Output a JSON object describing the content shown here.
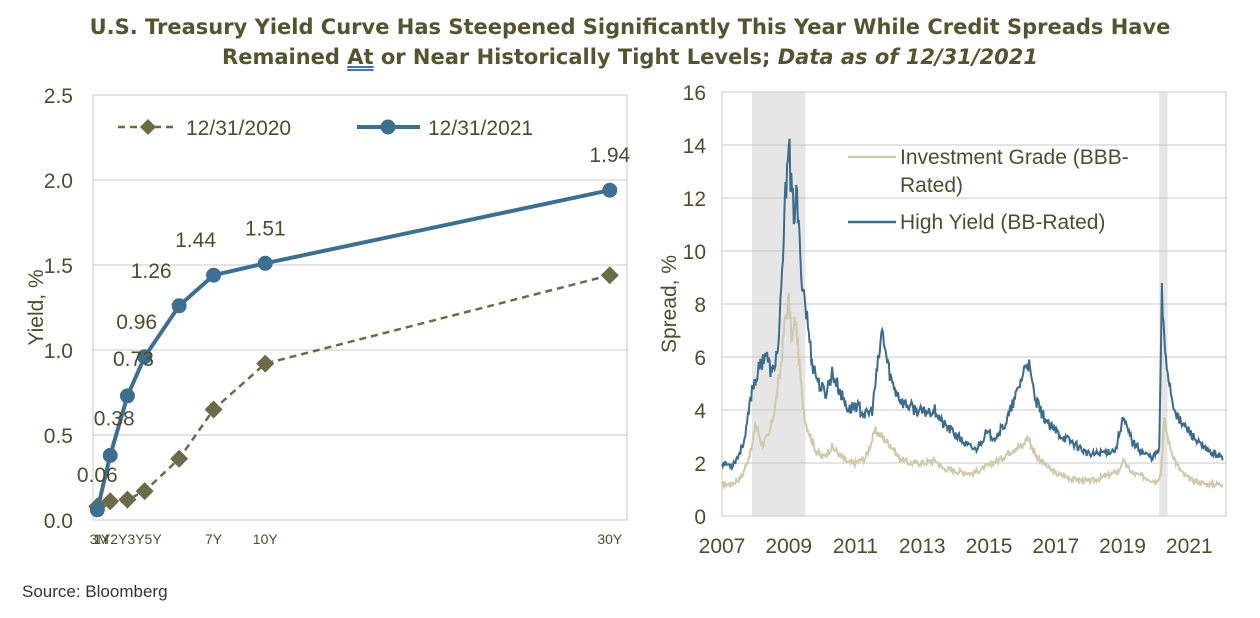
{
  "title": {
    "line1": "U.S. Treasury Yield Curve Has Steepened Significantly This Year While Credit Spreads Have",
    "line2_a": "Remained ",
    "line2_at": "At",
    "line2_b": " or Near Historically Tight Levels; ",
    "line2_date": "Data as of 12/31/2021"
  },
  "source": "Source: Bloomberg",
  "colors": {
    "title": "#545432",
    "series_2020": "#6b6b4a",
    "series_2021": "#3e6f91",
    "investment_grade": "#cfc9ad",
    "high_yield": "#3d6b8a",
    "recession": "#e6e6e6",
    "grid": "#c8c8c8",
    "axis_text": "#4d4d33"
  },
  "chart_data": [
    {
      "type": "line",
      "ylabel": "Yield, %",
      "xlabel": "",
      "ylim": [
        0,
        2.5
      ],
      "yticks": [
        "0.0",
        "0.5",
        "1.0",
        "1.5",
        "2.0",
        "2.5"
      ],
      "grid": true,
      "legend_position": "top",
      "x_numeric": [
        0.25,
        1,
        2,
        3,
        5,
        7,
        10,
        30
      ],
      "categories": [
        "3M",
        "1Y",
        "2Y",
        "3Y",
        "5Y",
        "7Y",
        "10Y",
        "30Y"
      ],
      "xtick_labels": [
        "3M",
        "1Y2Y3Y5Y",
        "7Y",
        "10Y",
        "30Y"
      ],
      "xtick_positions": [
        0.25,
        2,
        7,
        10,
        30
      ],
      "series": [
        {
          "name": "12/31/2020",
          "style": "dashed-diamond",
          "values": [
            0.08,
            0.11,
            0.12,
            0.17,
            0.36,
            0.65,
            0.92,
            1.44
          ]
        },
        {
          "name": "12/31/2021",
          "style": "solid-circle",
          "values": [
            0.06,
            0.38,
            0.73,
            0.96,
            1.26,
            1.44,
            1.51,
            1.94
          ],
          "data_labels": [
            "0.06",
            "0.38",
            "0.73",
            "0.96",
            "1.26",
            "1.44",
            "1.51",
            "1.94"
          ]
        }
      ]
    },
    {
      "type": "line",
      "ylabel": "Spread, %",
      "xlabel": "",
      "xlim": [
        2007,
        2022.1
      ],
      "ylim": [
        0,
        16
      ],
      "yticks": [
        "0",
        "2",
        "4",
        "6",
        "8",
        "10",
        "12",
        "14",
        "16"
      ],
      "xticks": [
        "2007",
        "2009",
        "2011",
        "2013",
        "2015",
        "2017",
        "2019",
        "2021"
      ],
      "grid": true,
      "legend_position": "top-center",
      "shaded_periods": [
        [
          2007.9,
          2009.5
        ],
        [
          2020.1,
          2020.35
        ]
      ],
      "series": [
        {
          "name": "Investment Grade (BBB-Rated)",
          "legend_line1": "Investment Grade (BBB-",
          "legend_line2": "Rated)",
          "x": [
            2007.0,
            2007.3,
            2007.6,
            2007.9,
            2008.0,
            2008.2,
            2008.4,
            2008.6,
            2008.75,
            2008.9,
            2009.0,
            2009.1,
            2009.2,
            2009.3,
            2009.4,
            2009.5,
            2009.6,
            2009.8,
            2010.0,
            2010.3,
            2010.6,
            2010.8,
            2011.0,
            2011.3,
            2011.6,
            2011.8,
            2011.95,
            2012.1,
            2012.3,
            2012.6,
            2013.0,
            2013.4,
            2013.6,
            2014.0,
            2014.5,
            2015.0,
            2015.4,
            2015.8,
            2016.0,
            2016.15,
            2016.4,
            2016.8,
            2017.0,
            2017.5,
            2018.0,
            2018.5,
            2018.9,
            2019.0,
            2019.3,
            2019.6,
            2020.0,
            2020.15,
            2020.25,
            2020.4,
            2020.6,
            2020.8,
            2021.0,
            2021.5,
            2022.0
          ],
          "values": [
            1.2,
            1.2,
            1.5,
            2.6,
            3.5,
            2.7,
            3.0,
            4.2,
            5.5,
            7.5,
            8.1,
            6.5,
            7.5,
            6.0,
            4.5,
            3.6,
            3.2,
            2.5,
            2.2,
            2.6,
            2.2,
            2.0,
            2.0,
            2.2,
            3.2,
            3.0,
            2.8,
            2.6,
            2.2,
            2.0,
            2.0,
            2.1,
            1.8,
            1.7,
            1.6,
            1.9,
            2.2,
            2.6,
            2.6,
            3.0,
            2.3,
            1.8,
            1.6,
            1.4,
            1.3,
            1.5,
            1.7,
            2.1,
            1.6,
            1.5,
            1.3,
            1.6,
            3.6,
            2.7,
            2.0,
            1.6,
            1.4,
            1.2,
            1.2
          ]
        },
        {
          "name": "High Yield (BB-Rated)",
          "x": [
            2007.0,
            2007.3,
            2007.5,
            2007.7,
            2007.9,
            2008.1,
            2008.3,
            2008.5,
            2008.7,
            2008.8,
            2008.9,
            2009.0,
            2009.05,
            2009.15,
            2009.25,
            2009.35,
            2009.5,
            2009.7,
            2009.9,
            2010.1,
            2010.3,
            2010.6,
            2010.8,
            2011.0,
            2011.3,
            2011.5,
            2011.7,
            2011.8,
            2011.95,
            2012.1,
            2012.4,
            2012.8,
            2013.0,
            2013.4,
            2013.6,
            2013.9,
            2014.3,
            2014.6,
            2014.9,
            2015.2,
            2015.5,
            2015.8,
            2016.0,
            2016.15,
            2016.4,
            2016.8,
            2017.2,
            2017.6,
            2018.0,
            2018.4,
            2018.8,
            2019.0,
            2019.3,
            2019.6,
            2019.9,
            2020.1,
            2020.18,
            2020.25,
            2020.35,
            2020.5,
            2020.7,
            2021.0,
            2021.3,
            2021.6,
            2021.9,
            2022.0
          ],
          "values": [
            2.0,
            1.9,
            2.3,
            3.0,
            4.8,
            5.5,
            6.2,
            5.3,
            6.5,
            9.0,
            12.0,
            14.7,
            12.5,
            11.5,
            12.0,
            9.5,
            8.0,
            5.8,
            5.0,
            4.6,
            5.4,
            4.5,
            4.0,
            4.2,
            3.8,
            4.0,
            6.0,
            7.0,
            5.8,
            5.0,
            4.3,
            4.0,
            3.9,
            4.0,
            3.5,
            3.2,
            2.7,
            2.5,
            3.1,
            3.0,
            3.5,
            4.5,
            5.3,
            5.9,
            4.3,
            3.4,
            3.0,
            2.7,
            2.3,
            2.4,
            2.5,
            3.7,
            2.8,
            2.4,
            2.2,
            2.5,
            8.4,
            6.5,
            5.5,
            4.3,
            3.6,
            3.2,
            2.7,
            2.4,
            2.3,
            2.1
          ]
        }
      ]
    }
  ]
}
